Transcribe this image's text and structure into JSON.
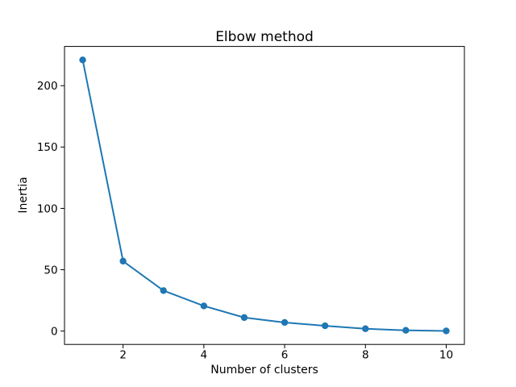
{
  "chart_data": {
    "type": "line",
    "title": "Elbow method",
    "xlabel": "Number of clusters",
    "ylabel": "Inertia",
    "x": [
      1,
      2,
      3,
      4,
      5,
      6,
      7,
      8,
      9,
      10
    ],
    "y": [
      221,
      57,
      33,
      20.5,
      11,
      7,
      4.3,
      1.9,
      0.6,
      0.1
    ],
    "xticks": [
      2,
      4,
      6,
      8,
      10
    ],
    "yticks": [
      0,
      50,
      100,
      150,
      200
    ],
    "xtick_labels": [
      "2",
      "4",
      "6",
      "8",
      "10"
    ],
    "ytick_labels": [
      "0",
      "50",
      "100",
      "150",
      "200"
    ],
    "xlim": [
      0.55,
      10.45
    ],
    "ylim": [
      -10.9,
      232.0
    ],
    "grid": false,
    "legend_position": "none",
    "line_color": "#1f77b4",
    "marker": "o",
    "axis_color": "#000000",
    "background_color": "#ffffff"
  }
}
